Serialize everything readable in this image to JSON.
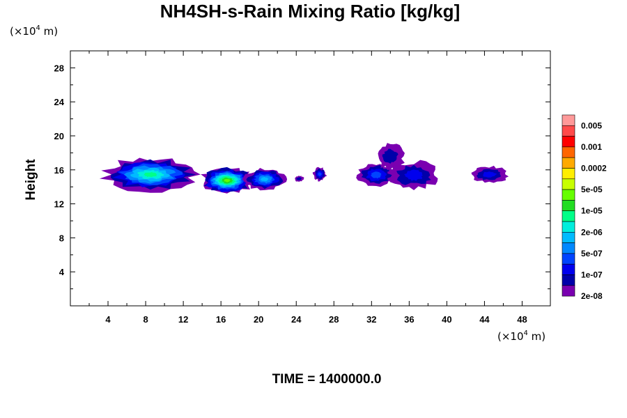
{
  "chart_data": {
    "type": "heatmap",
    "title": "NH4SH-s-Rain Mixing Ratio [kg/kg]",
    "ylabel": "Height",
    "x_unit": "(×10",
    "x_unit_exp": "4",
    "x_unit_tail": " m)",
    "y_unit": "(×10",
    "y_unit_exp": "4",
    "y_unit_tail": " m)",
    "xlim": [
      0,
      51
    ],
    "ylim": [
      0,
      30
    ],
    "x_ticks": [
      4,
      8,
      12,
      16,
      20,
      24,
      28,
      32,
      36,
      40,
      44,
      48
    ],
    "y_ticks": [
      4,
      8,
      12,
      16,
      20,
      24,
      28
    ],
    "colorbar": {
      "labels": [
        "0.005",
        "0.001",
        "0.0002",
        "5e-05",
        "1e-05",
        "2e-06",
        "5e-07",
        "1e-07",
        "2e-08"
      ],
      "colors_top_to_bottom": [
        "#ff9999",
        "#ff4a4a",
        "#ff0000",
        "#ff6600",
        "#ffaa00",
        "#ffee00",
        "#c8ff00",
        "#66ff00",
        "#22dd22",
        "#00ff88",
        "#00eedd",
        "#00bbff",
        "#0088ff",
        "#0044ff",
        "#0000ee",
        "#0000aa",
        "#7a00b0"
      ]
    },
    "regions": [
      {
        "x": [
          3.5,
          13.5
        ],
        "y": [
          13.5,
          17.4
        ],
        "peak": 7
      },
      {
        "x": [
          13.8,
          19.5
        ],
        "y": [
          13.2,
          16.3
        ],
        "peak": 9
      },
      {
        "x": [
          18.5,
          22.8
        ],
        "y": [
          13.6,
          16.2
        ],
        "peak": 5
      },
      {
        "x": [
          23.8,
          24.8
        ],
        "y": [
          14.6,
          15.3
        ],
        "peak": 1
      },
      {
        "x": [
          25.8,
          27.2
        ],
        "y": [
          14.7,
          16.3
        ],
        "peak": 3
      },
      {
        "x": [
          30.5,
          34.5
        ],
        "y": [
          14.0,
          16.8
        ],
        "peak": 3
      },
      {
        "x": [
          32.5,
          35.5
        ],
        "y": [
          16.0,
          19.2
        ],
        "peak": 1
      },
      {
        "x": [
          33.8,
          39.2
        ],
        "y": [
          13.7,
          17.0
        ],
        "peak": 2
      },
      {
        "x": [
          42.5,
          46.5
        ],
        "y": [
          14.5,
          16.4
        ],
        "peak": 2
      }
    ]
  },
  "footer": {
    "time_label": "TIME = 1400000.0"
  }
}
